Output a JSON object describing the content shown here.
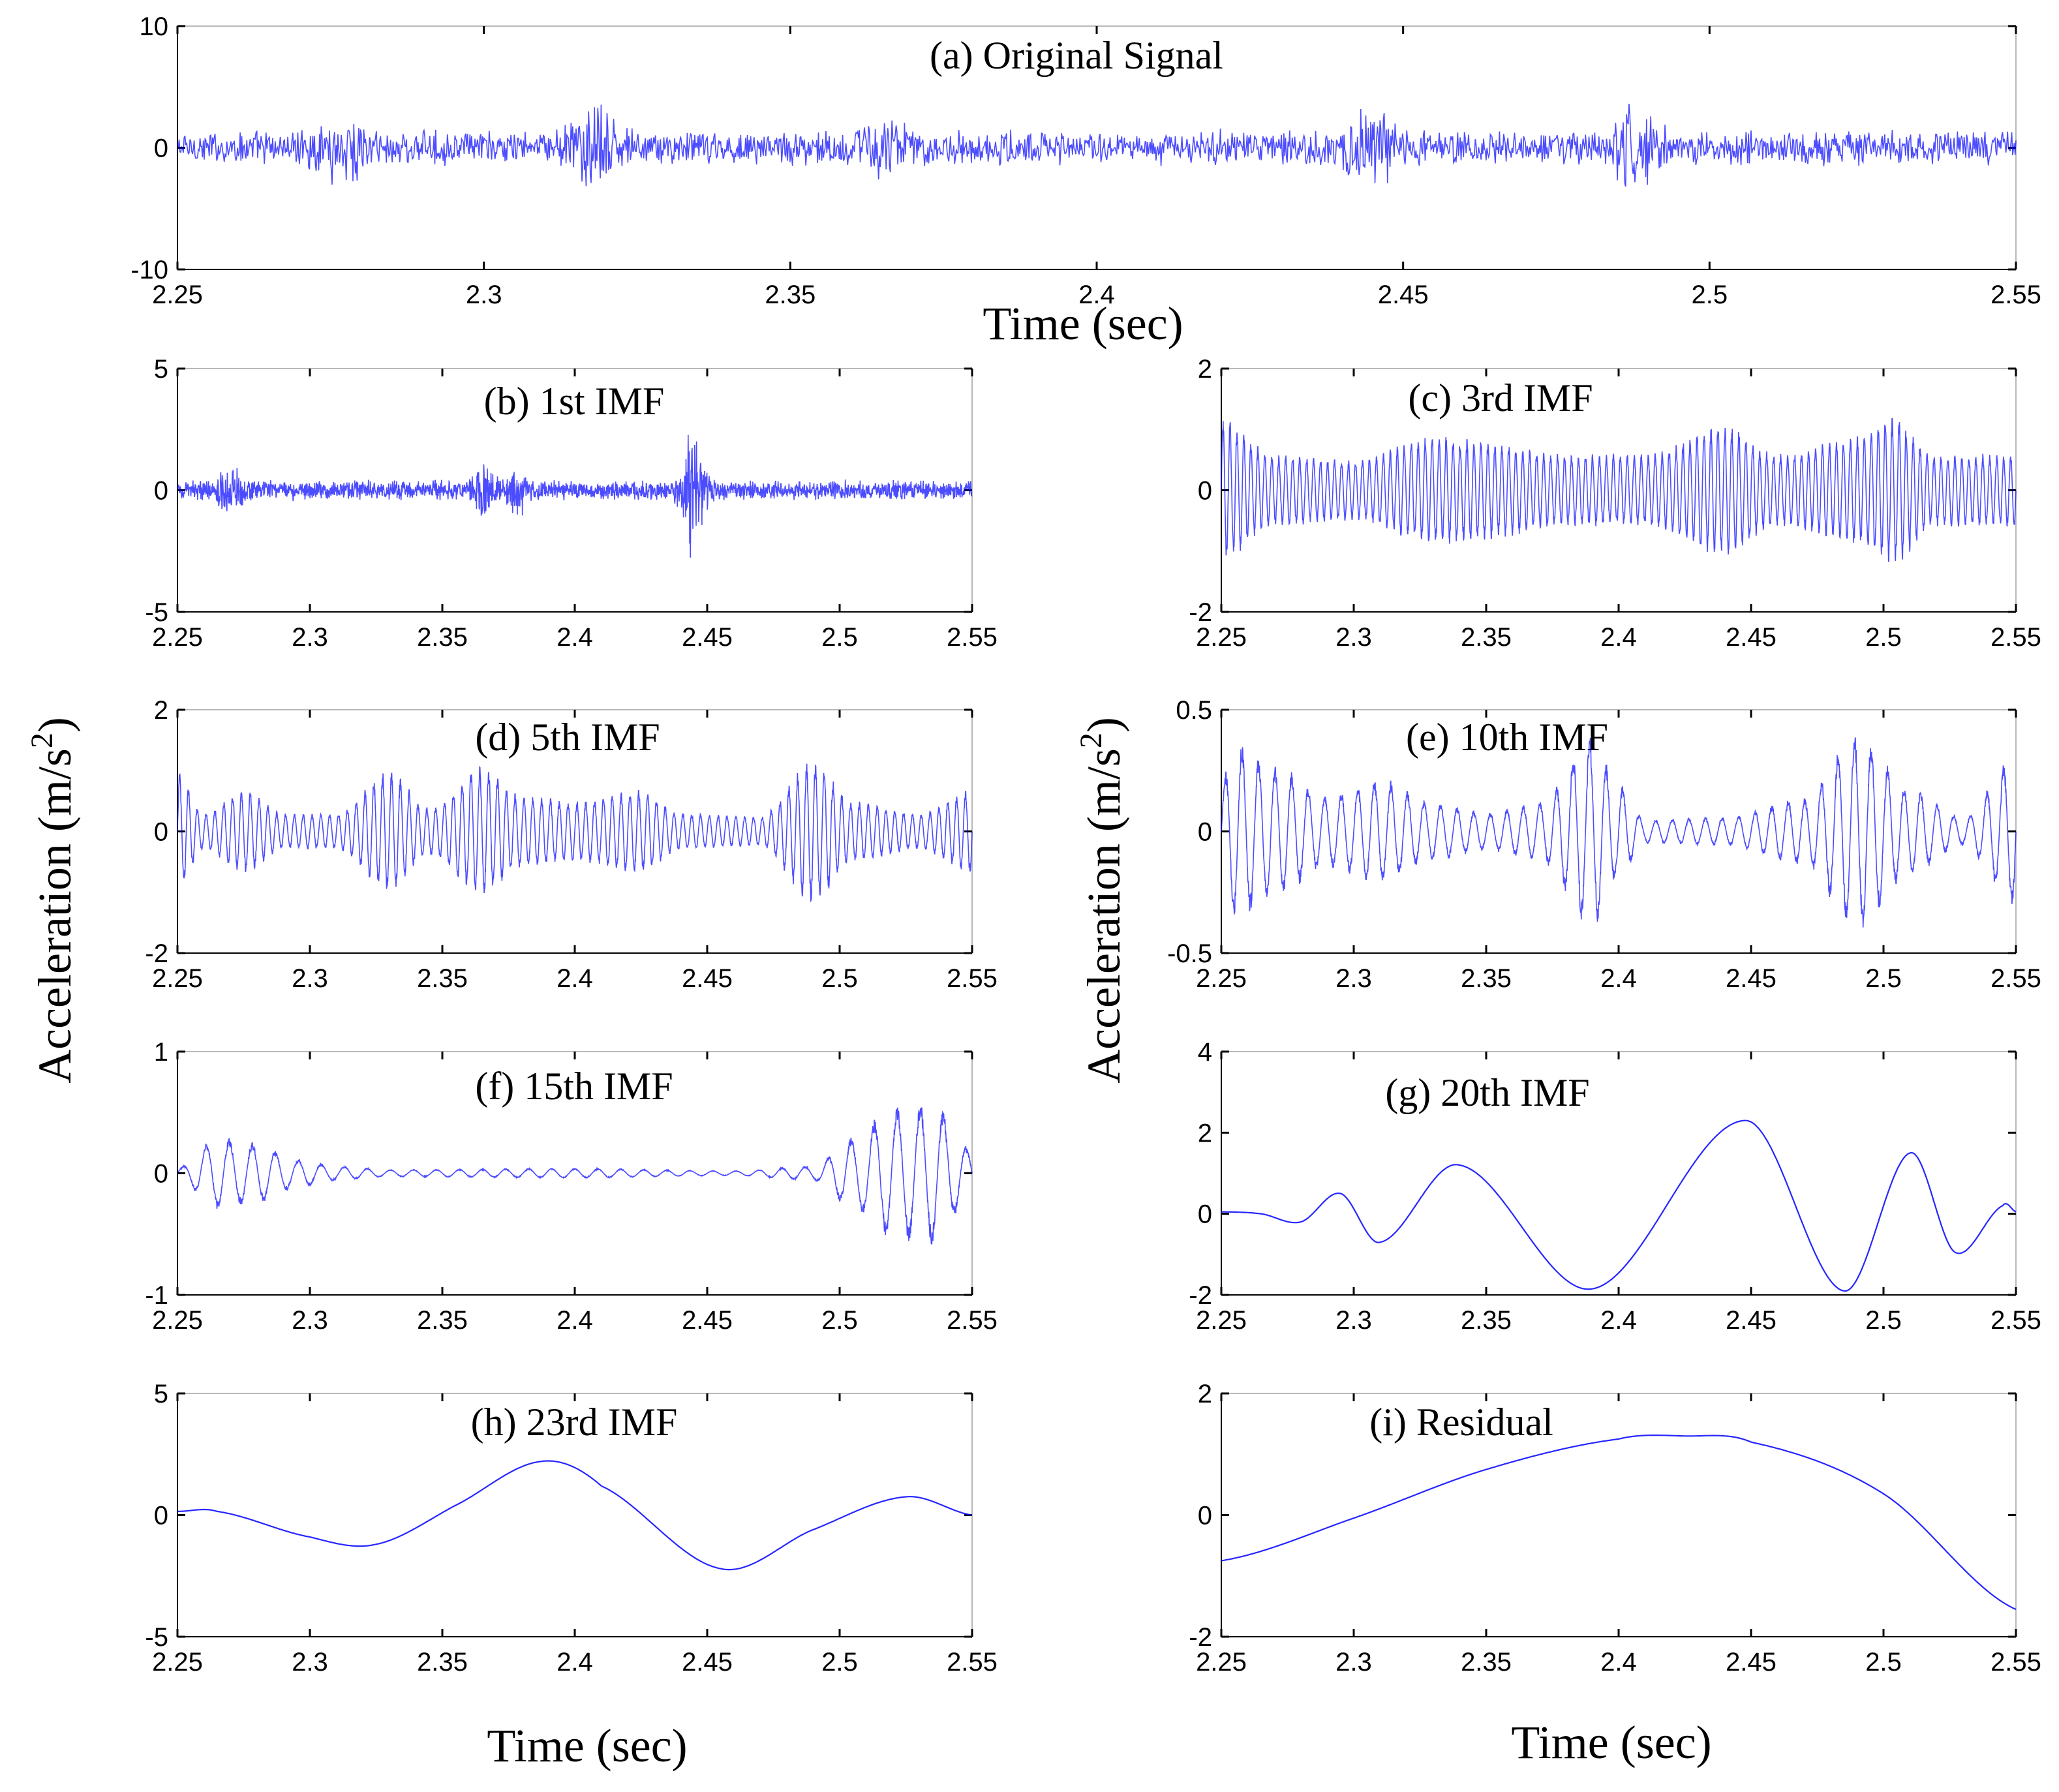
{
  "figure": {
    "left_ylabel": "Acceleration (m/s2)",
    "right_ylabel": "Acceleration (m/s2)",
    "top_xlabel": "Time (sec)",
    "bottom_left_xlabel": "Time (sec)",
    "bottom_right_xlabel": "Time (sec)",
    "ylabel_base": "Acceleration (m/s",
    "ylabel_sup": "2",
    "ylabel_close": ")"
  },
  "chart_data": [
    {
      "id": "a",
      "type": "line",
      "title": "(a)   Original Signal",
      "xlabel": "Time (sec)",
      "xlim": [
        2.25,
        2.55
      ],
      "ylim": [
        -10,
        10
      ],
      "xticks": [
        "2.25",
        "2.3",
        "2.35",
        "2.4",
        "2.45",
        "2.5",
        "2.55"
      ],
      "yticks": [
        "10",
        "0",
        "-10"
      ],
      "line_color": "#0000ff",
      "signal": {
        "kind": "noise",
        "base_amp": 1.6,
        "bursts": [
          [
            2.277,
            2.0
          ],
          [
            2.318,
            2.6
          ],
          [
            2.365,
            1.8
          ],
          [
            2.445,
            2.2
          ],
          [
            2.488,
            2.4
          ]
        ]
      }
    },
    {
      "id": "b",
      "type": "line",
      "title": "(b) 1st IMF",
      "xlim": [
        2.25,
        2.55
      ],
      "ylim": [
        -5,
        5
      ],
      "xticks": [
        "2.25",
        "2.3",
        "2.35",
        "2.4",
        "2.45",
        "2.5",
        "2.55"
      ],
      "yticks": [
        "5",
        "0",
        "-5"
      ],
      "line_color": "#0000ff",
      "signal": {
        "kind": "noise",
        "base_amp": 0.45,
        "bursts": [
          [
            2.27,
            0.9
          ],
          [
            2.365,
            1.0
          ],
          [
            2.378,
            0.9
          ],
          [
            2.445,
            2.8
          ]
        ]
      }
    },
    {
      "id": "c",
      "type": "line",
      "title": "(c) 3rd IMF",
      "xlim": [
        2.25,
        2.55
      ],
      "ylim": [
        -2,
        2
      ],
      "xticks": [
        "2.25",
        "2.3",
        "2.35",
        "2.4",
        "2.45",
        "2.5",
        "2.55"
      ],
      "yticks": [
        "2",
        "0",
        "-2"
      ],
      "line_color": "#0000ff",
      "signal": {
        "kind": "am",
        "freq": 380,
        "env": [
          [
            2.25,
            1.2
          ],
          [
            2.27,
            0.6
          ],
          [
            2.3,
            0.5
          ],
          [
            2.33,
            0.9
          ],
          [
            2.345,
            0.85
          ],
          [
            2.38,
            0.6
          ],
          [
            2.41,
            0.6
          ],
          [
            2.44,
            1.1
          ],
          [
            2.46,
            0.6
          ],
          [
            2.49,
            0.9
          ],
          [
            2.503,
            1.25
          ],
          [
            2.52,
            0.6
          ],
          [
            2.55,
            0.6
          ]
        ]
      }
    },
    {
      "id": "d",
      "type": "line",
      "title": "(d) 5th IMF",
      "xlim": [
        2.25,
        2.55
      ],
      "ylim": [
        -2,
        2
      ],
      "xticks": [
        "2.25",
        "2.3",
        "2.35",
        "2.4",
        "2.45",
        "2.5",
        "2.55"
      ],
      "yticks": [
        "2",
        "0",
        "-2"
      ],
      "line_color": "#0000ff",
      "signal": {
        "kind": "am",
        "freq": 300,
        "env": [
          [
            2.25,
            1.0
          ],
          [
            2.26,
            0.3
          ],
          [
            2.275,
            0.7
          ],
          [
            2.29,
            0.3
          ],
          [
            2.31,
            0.3
          ],
          [
            2.33,
            1.0
          ],
          [
            2.345,
            0.4
          ],
          [
            2.365,
            1.1
          ],
          [
            2.38,
            0.6
          ],
          [
            2.4,
            0.5
          ],
          [
            2.425,
            0.7
          ],
          [
            2.44,
            0.3
          ],
          [
            2.47,
            0.25
          ],
          [
            2.49,
            1.2
          ],
          [
            2.505,
            0.5
          ],
          [
            2.53,
            0.3
          ],
          [
            2.55,
            0.7
          ]
        ]
      }
    },
    {
      "id": "e",
      "type": "line",
      "title": "(e) 10th IMF",
      "xlim": [
        2.25,
        2.55
      ],
      "ylim": [
        -0.5,
        0.5
      ],
      "xticks": [
        "2.25",
        "2.3",
        "2.35",
        "2.4",
        "2.45",
        "2.5",
        "2.55"
      ],
      "yticks": [
        "0.5",
        "0",
        "-0.5"
      ],
      "line_color": "#0000ff",
      "signal": {
        "kind": "am",
        "freq": 160,
        "env": [
          [
            2.25,
            0.2
          ],
          [
            2.255,
            0.38
          ],
          [
            2.27,
            0.28
          ],
          [
            2.29,
            0.15
          ],
          [
            2.31,
            0.22
          ],
          [
            2.33,
            0.12
          ],
          [
            2.35,
            0.08
          ],
          [
            2.37,
            0.12
          ],
          [
            2.39,
            0.4
          ],
          [
            2.4,
            0.2
          ],
          [
            2.41,
            0.05
          ],
          [
            2.44,
            0.06
          ],
          [
            2.47,
            0.14
          ],
          [
            2.49,
            0.42
          ],
          [
            2.51,
            0.18
          ],
          [
            2.53,
            0.06
          ],
          [
            2.55,
            0.32
          ]
        ]
      }
    },
    {
      "id": "f",
      "type": "line",
      "title": "(f) 15th IMF",
      "xlim": [
        2.25,
        2.55
      ],
      "ylim": [
        -1,
        1
      ],
      "xticks": [
        "2.25",
        "2.3",
        "2.35",
        "2.4",
        "2.45",
        "2.5",
        "2.55"
      ],
      "yticks": [
        "1",
        "0",
        "-1"
      ],
      "line_color": "#0000ff",
      "signal": {
        "kind": "am",
        "freq": 115,
        "env": [
          [
            2.25,
            0.05
          ],
          [
            2.265,
            0.3
          ],
          [
            2.28,
            0.25
          ],
          [
            2.295,
            0.12
          ],
          [
            2.31,
            0.06
          ],
          [
            2.33,
            0.03
          ],
          [
            2.4,
            0.04
          ],
          [
            2.46,
            0.02
          ],
          [
            2.49,
            0.06
          ],
          [
            2.505,
            0.3
          ],
          [
            2.52,
            0.55
          ],
          [
            2.535,
            0.6
          ],
          [
            2.55,
            0.2
          ]
        ]
      }
    },
    {
      "id": "g",
      "type": "line",
      "title": "(g) 20th IMF",
      "xlim": [
        2.25,
        2.55
      ],
      "ylim": [
        -2,
        4
      ],
      "xticks": [
        "2.25",
        "2.3",
        "2.35",
        "2.4",
        "2.45",
        "2.5",
        "2.55"
      ],
      "yticks": [
        "4",
        "2",
        "0",
        "-2"
      ],
      "line_color": "#0000ff",
      "signal": {
        "kind": "spline",
        "points": [
          [
            2.25,
            0.05
          ],
          [
            2.265,
            0.0
          ],
          [
            2.28,
            -0.2
          ],
          [
            2.295,
            0.5
          ],
          [
            2.31,
            -0.7
          ],
          [
            2.34,
            1.2
          ],
          [
            2.39,
            -1.85
          ],
          [
            2.448,
            2.3
          ],
          [
            2.485,
            -1.9
          ],
          [
            2.51,
            1.5
          ],
          [
            2.527,
            -0.95
          ],
          [
            2.545,
            0.2
          ],
          [
            2.55,
            0.05
          ]
        ]
      }
    },
    {
      "id": "h",
      "type": "line",
      "title": "(h) 23rd IMF",
      "xlim": [
        2.25,
        2.55
      ],
      "ylim": [
        -5,
        5
      ],
      "xticks": [
        "2.25",
        "2.3",
        "2.35",
        "2.4",
        "2.45",
        "2.5",
        "2.55"
      ],
      "yticks": [
        "5",
        "0",
        "-5"
      ],
      "line_color": "#0000ff",
      "signal": {
        "kind": "spline",
        "points": [
          [
            2.25,
            0.15
          ],
          [
            2.265,
            0.15
          ],
          [
            2.3,
            -0.9
          ],
          [
            2.325,
            -1.2
          ],
          [
            2.355,
            0.4
          ],
          [
            2.387,
            2.2
          ],
          [
            2.41,
            1.2
          ],
          [
            2.455,
            -2.2
          ],
          [
            2.49,
            -0.6
          ],
          [
            2.525,
            0.75
          ],
          [
            2.55,
            0.0
          ]
        ]
      }
    },
    {
      "id": "i",
      "type": "line",
      "title": "(i) Residual",
      "xlim": [
        2.25,
        2.55
      ],
      "ylim": [
        -2,
        2
      ],
      "xticks": [
        "2.25",
        "2.3",
        "2.35",
        "2.4",
        "2.45",
        "2.5",
        "2.55"
      ],
      "yticks": [
        "2",
        "0",
        "-2"
      ],
      "line_color": "#0000ff",
      "signal": {
        "kind": "spline",
        "points": [
          [
            2.25,
            -0.75
          ],
          [
            2.3,
            -0.05
          ],
          [
            2.35,
            0.75
          ],
          [
            2.4,
            1.25
          ],
          [
            2.425,
            1.3
          ],
          [
            2.45,
            1.2
          ],
          [
            2.5,
            0.35
          ],
          [
            2.55,
            -1.55
          ]
        ]
      }
    }
  ]
}
